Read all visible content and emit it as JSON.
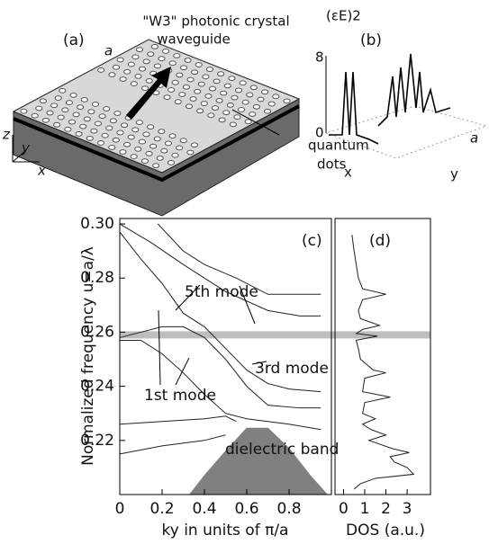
{
  "panel_a": {
    "label": "(a)",
    "title_line1": "\"W3\" photonic crystal",
    "title_line2": "waveguide",
    "lattice": "a",
    "dots_line1": "quantum",
    "dots_line2": "dots",
    "axis_z": "z",
    "axis_y": "y",
    "axis_x": "x"
  },
  "panel_b": {
    "label": "(b)",
    "field": "(εE)2",
    "top": "8",
    "bottom": "0",
    "axis_x": "x",
    "axis_y": "y",
    "lattice": "a"
  },
  "chart_data": [
    {
      "type": "line",
      "title": "(c)",
      "xlabel": "ky in units of π/a",
      "ylabel": "Normalized frequency u=a/λ",
      "xlim": [
        0,
        1
      ],
      "ylim": [
        0.2,
        0.302
      ],
      "xticks": [
        0,
        0.2,
        0.4,
        0.6,
        0.8
      ],
      "yticks": [
        0.22,
        0.24,
        0.26,
        0.28,
        {
          "value": 0.3,
          "label": "0.30"
        }
      ],
      "highlight": 0.259,
      "annotations": [
        "5th mode",
        "3rd mode",
        "1st mode",
        "dielectric band"
      ],
      "series": [
        {
          "color": "#222",
          "x": [
            0.18,
            0.3,
            0.4,
            0.55,
            0.7,
            0.85,
            0.95
          ],
          "values": [
            0.3,
            0.29,
            0.285,
            0.28,
            0.274,
            0.274,
            0.274
          ]
        },
        {
          "color": "#222",
          "x": [
            0,
            0.15,
            0.3,
            0.5,
            0.7,
            0.85,
            0.95
          ],
          "values": [
            0.3,
            0.293,
            0.285,
            0.275,
            0.268,
            0.266,
            0.266
          ]
        },
        {
          "color": "#222",
          "x": [
            0,
            0.1,
            0.2,
            0.3,
            0.4,
            0.5,
            0.6,
            0.7,
            0.8,
            0.95
          ],
          "values": [
            0.297,
            0.287,
            0.278,
            0.267,
            0.262,
            0.254,
            0.246,
            0.241,
            0.239,
            0.238
          ]
        },
        {
          "color": "#222",
          "x": [
            0,
            0.2,
            0.3,
            0.4,
            0.5,
            0.6,
            0.7,
            0.85,
            0.95
          ],
          "values": [
            0.258,
            0.262,
            0.262,
            0.258,
            0.25,
            0.24,
            0.233,
            0.232,
            0.232
          ]
        },
        {
          "color": "#222",
          "x": [
            0,
            0.1,
            0.2,
            0.3,
            0.4,
            0.5,
            0.6,
            0.8,
            0.95
          ],
          "values": [
            0.257,
            0.257,
            0.252,
            0.245,
            0.237,
            0.23,
            0.228,
            0.226,
            0.224
          ]
        },
        {
          "color": "#222",
          "x": [
            0,
            0.2,
            0.4,
            0.5,
            0.55
          ],
          "values": [
            0.226,
            0.227,
            0.228,
            0.229,
            0.227
          ]
        },
        {
          "color": "#222",
          "x": [
            0,
            0.2,
            0.4,
            0.5
          ],
          "values": [
            0.215,
            0.218,
            0.22,
            0.222
          ]
        },
        {
          "color": "#808080",
          "fill": true,
          "x": [
            0.33,
            0.4,
            0.5,
            0.6,
            0.7,
            0.8,
            0.9,
            0.98
          ],
          "values": [
            0.2,
            0.207,
            0.216,
            0.2245,
            0.2245,
            0.217,
            0.207,
            0.2
          ]
        }
      ]
    },
    {
      "type": "line",
      "xlabel": "DOS (a.u.)",
      "title": "(d)",
      "xlim": [
        -0.4,
        4.1
      ],
      "ylim": [
        0.2,
        0.302
      ],
      "xticks": [
        0,
        1,
        2,
        3
      ],
      "series": [
        {
          "color": "#222",
          "y": [
            0.296,
            0.29,
            0.285,
            0.28,
            0.276,
            0.274,
            0.272,
            0.268,
            0.265,
            0.2625,
            0.261,
            0.2595,
            0.2585,
            0.257,
            0.254,
            0.25,
            0.246,
            0.245,
            0.243,
            0.238,
            0.236,
            0.234,
            0.23,
            0.228,
            0.226,
            0.224,
            0.222,
            0.22,
            0.217,
            0.2155,
            0.214,
            0.212,
            0.21,
            0.2075,
            0.206,
            0.204,
            0.202
          ],
          "values": [
            0.4,
            0.5,
            0.6,
            0.7,
            0.9,
            2.0,
            0.9,
            0.7,
            0.8,
            1.7,
            0.9,
            0.6,
            1.6,
            0.6,
            0.7,
            0.8,
            1.4,
            2.0,
            1.0,
            0.9,
            2.2,
            1.0,
            0.9,
            1.5,
            0.9,
            1.3,
            2.0,
            1.2,
            2.3,
            3.1,
            2.2,
            2.4,
            3.0,
            3.3,
            1.5,
            0.8,
            0.5
          ]
        }
      ]
    }
  ]
}
